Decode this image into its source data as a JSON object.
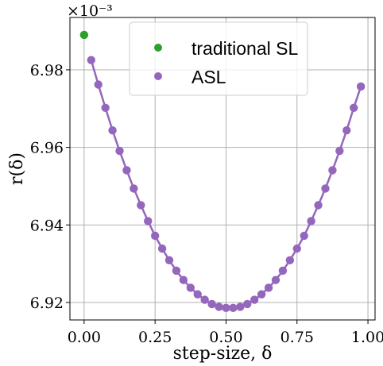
{
  "chart_data": {
    "type": "scatter",
    "xlabel": "step-size, δ",
    "ylabel": "r(δ)",
    "y_multiplier_label": "×10⁻³",
    "xlim": [
      -0.05,
      1.025
    ],
    "ylim": [
      6.9155,
      6.9935
    ],
    "x_ticks": [
      0.0,
      0.25,
      0.5,
      0.75,
      1.0
    ],
    "x_tick_labels": [
      "0.00",
      "0.25",
      "0.50",
      "0.75",
      "1.00"
    ],
    "y_ticks": [
      6.92,
      6.94,
      6.96,
      6.98
    ],
    "y_tick_labels": [
      "6.92",
      "6.94",
      "6.96",
      "6.98"
    ],
    "grid": true,
    "legend_position": "top-center",
    "series": [
      {
        "name": "traditional SL",
        "color": "#2ca02c",
        "style": "markers",
        "x": [
          0.0
        ],
        "y": [
          6.989
        ]
      },
      {
        "name": "ASL",
        "color": "#9467bd",
        "style": "line+markers",
        "x": [
          0.025,
          0.05,
          0.075,
          0.1,
          0.125,
          0.15,
          0.175,
          0.2,
          0.225,
          0.25,
          0.275,
          0.3,
          0.325,
          0.35,
          0.375,
          0.4,
          0.425,
          0.45,
          0.475,
          0.5,
          0.525,
          0.55,
          0.575,
          0.6,
          0.625,
          0.65,
          0.675,
          0.7,
          0.725,
          0.75,
          0.775,
          0.8,
          0.825,
          0.85,
          0.875,
          0.9,
          0.925,
          0.95,
          0.975
        ],
        "y": [
          6.9825,
          6.9762,
          6.9702,
          6.9644,
          6.9591,
          6.9541,
          6.9494,
          6.9451,
          6.941,
          6.9372,
          6.9339,
          6.9309,
          6.9282,
          6.9258,
          6.9238,
          6.9221,
          6.9207,
          6.9196,
          6.9189,
          6.9186,
          6.9186,
          6.9189,
          6.9196,
          6.9207,
          6.9221,
          6.9238,
          6.9258,
          6.9282,
          6.9309,
          6.9339,
          6.9372,
          6.941,
          6.9451,
          6.9494,
          6.9541,
          6.9591,
          6.9644,
          6.9702,
          6.9757
        ]
      }
    ]
  }
}
